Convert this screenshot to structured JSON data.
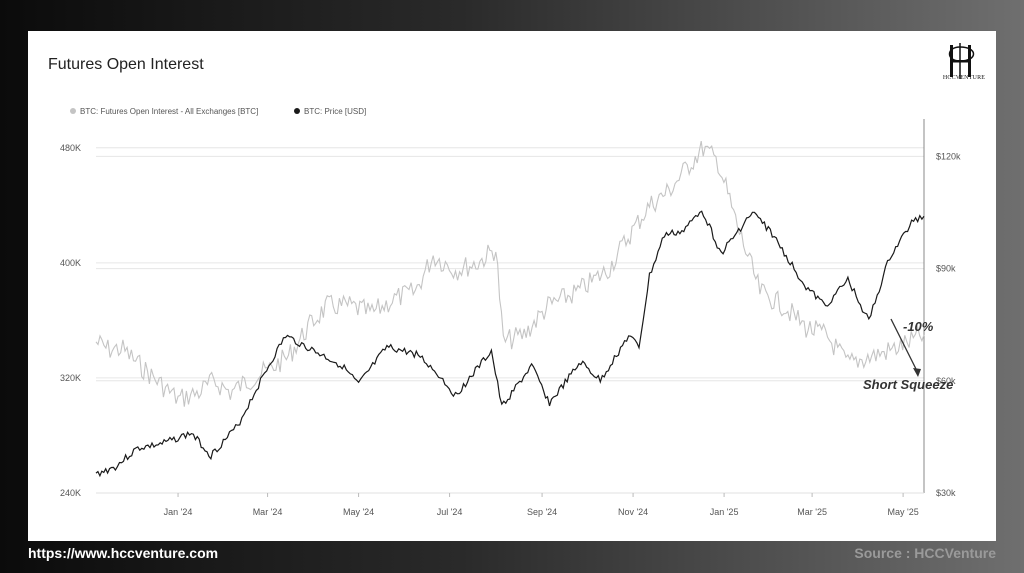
{
  "title": "Futures Open Interest",
  "logo": {
    "text": "HCCVENTURE"
  },
  "footer": {
    "url": "https://www.hccventure.com",
    "source": "Source : HCCVenture"
  },
  "colors": {
    "open_interest": "#c4c4c4",
    "price": "#1a1a1a",
    "grid": "#e6e6e6"
  },
  "chart_data": {
    "type": "line",
    "title": "Futures Open Interest",
    "legend": [
      "BTC: Futures Open Interest - All Exchanges [BTC]",
      "BTC: Price [USD]"
    ],
    "legend_position": "top-left",
    "grid": true,
    "x_ticks": [
      "Jan '24",
      "Mar '24",
      "May '24",
      "Jul '24",
      "Sep '24",
      "Nov '24",
      "Jan '25",
      "Mar '25",
      "May '25"
    ],
    "x_range": [
      "2023-11-07",
      "2025-05-15"
    ],
    "y_left": {
      "ticks": [
        "240K",
        "320K",
        "400K",
        "480K"
      ],
      "values": [
        240000,
        320000,
        400000,
        480000
      ],
      "range": [
        240000,
        500000
      ]
    },
    "y_right": {
      "ticks": [
        "$30k",
        "$60k",
        "$90k",
        "$120k"
      ],
      "values": [
        30000,
        60000,
        90000,
        120000
      ],
      "range": [
        30000,
        130000
      ]
    },
    "series": [
      {
        "name": "BTC: Futures Open Interest - All Exchanges [BTC]",
        "axis": "left",
        "x": [
          "2023-11-07",
          "2023-11-15",
          "2023-11-25",
          "2023-12-05",
          "2023-12-18",
          "2024-01-01",
          "2024-01-15",
          "2024-01-25",
          "2024-02-05",
          "2024-02-20",
          "2024-03-01",
          "2024-03-15",
          "2024-03-28",
          "2024-04-10",
          "2024-04-25",
          "2024-05-10",
          "2024-05-25",
          "2024-06-08",
          "2024-06-20",
          "2024-07-05",
          "2024-07-20",
          "2024-08-01",
          "2024-08-06",
          "2024-08-20",
          "2024-09-05",
          "2024-09-25",
          "2024-10-15",
          "2024-10-30",
          "2024-11-12",
          "2024-11-25",
          "2024-12-10",
          "2024-12-18",
          "2024-12-28",
          "2025-01-10",
          "2025-01-25",
          "2025-02-10",
          "2025-02-25",
          "2025-03-10",
          "2025-03-25",
          "2025-04-10",
          "2025-04-25",
          "2025-05-05",
          "2025-05-15"
        ],
        "values": [
          345000,
          340000,
          340000,
          330000,
          318000,
          305000,
          310000,
          318000,
          310000,
          320000,
          325000,
          335000,
          355000,
          370000,
          370000,
          365000,
          375000,
          380000,
          405000,
          395000,
          400000,
          410000,
          345000,
          350000,
          370000,
          380000,
          395000,
          420000,
          440000,
          450000,
          470000,
          480000,
          470000,
          425000,
          380000,
          370000,
          355000,
          350000,
          330000,
          335000,
          340000,
          345000,
          350000
        ]
      },
      {
        "name": "BTC: Price [USD]",
        "axis": "right",
        "x": [
          "2023-11-07",
          "2023-11-20",
          "2023-12-05",
          "2023-12-20",
          "2024-01-10",
          "2024-01-23",
          "2024-02-10",
          "2024-02-28",
          "2024-03-13",
          "2024-04-01",
          "2024-04-20",
          "2024-05-01",
          "2024-05-20",
          "2024-06-10",
          "2024-06-25",
          "2024-07-05",
          "2024-07-29",
          "2024-08-05",
          "2024-08-25",
          "2024-09-06",
          "2024-09-27",
          "2024-10-10",
          "2024-10-29",
          "2024-11-05",
          "2024-11-12",
          "2024-11-22",
          "2024-12-05",
          "2024-12-17",
          "2024-12-30",
          "2025-01-20",
          "2025-02-01",
          "2025-02-25",
          "2025-03-10",
          "2025-03-25",
          "2025-04-08",
          "2025-04-22",
          "2025-05-08",
          "2025-05-15"
        ],
        "values": [
          35000,
          37000,
          42000,
          43000,
          46000,
          40000,
          48000,
          62000,
          72000,
          68000,
          64000,
          59000,
          69000,
          67000,
          61000,
          56000,
          68000,
          53000,
          64000,
          54000,
          65000,
          60000,
          72000,
          69000,
          88000,
          99000,
          100000,
          106000,
          94000,
          105000,
          100000,
          85000,
          80000,
          87000,
          76000,
          93000,
          103000,
          104000
        ]
      }
    ],
    "annotations": [
      "-10%",
      "Short Squeeze"
    ]
  }
}
